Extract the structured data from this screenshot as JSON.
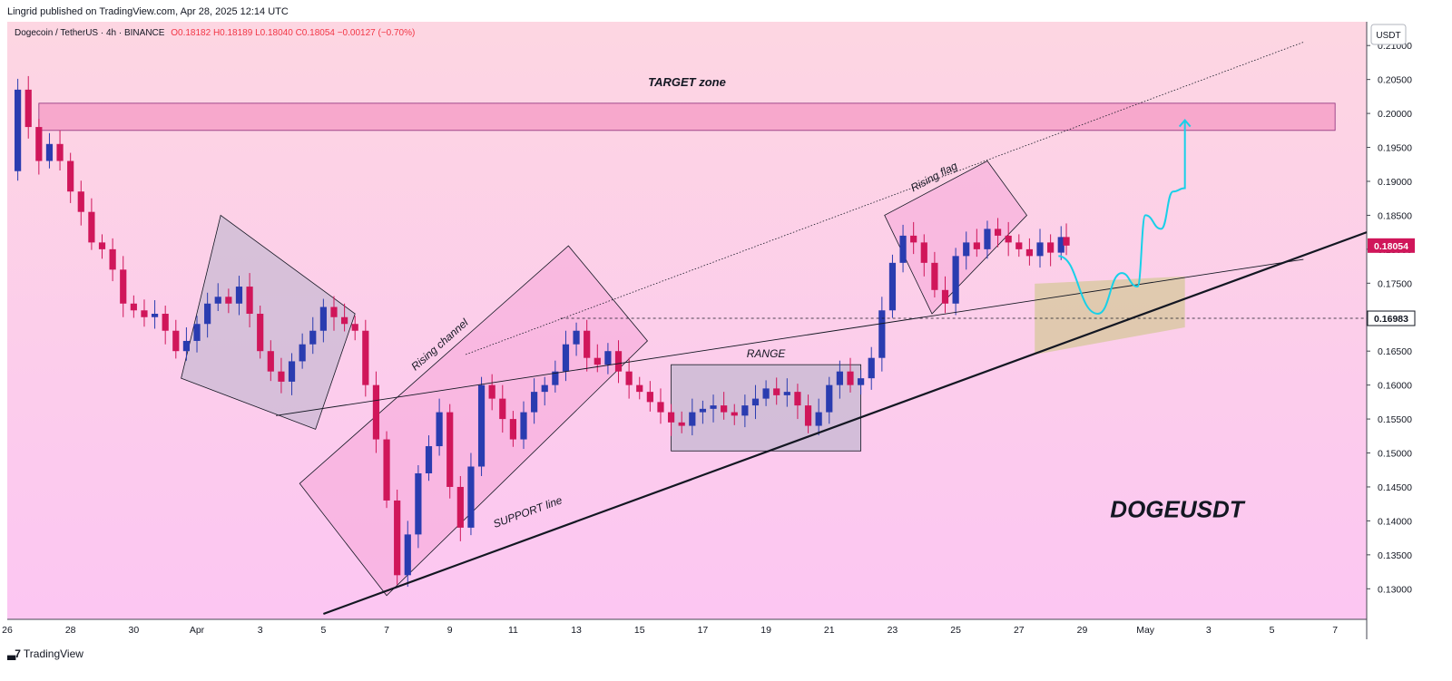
{
  "header": {
    "published": "Lingrid published on TradingView.com, Apr 28, 2025 12:14 UTC"
  },
  "symbol": {
    "title": "Dogecoin / TetherUS · 4h · BINANCE",
    "ohlc": "O0.18182  H0.18189  L0.18040  C0.18054  −0.00127 (−0.70%)"
  },
  "footer": {
    "brand": "TradingView",
    "logo_icon": "tradingview-logo-icon"
  },
  "colors": {
    "bg_top": "#fdd6e2",
    "bg_bottom": "#fcc6f2",
    "bull": "#2a3cb0",
    "bear": "#d0165a",
    "target_zone": "#f6a0c8",
    "path": "#18d0e8",
    "label_bg": "#131722"
  },
  "chart_data": {
    "type": "candlestick",
    "timeframe": "4h",
    "y_axis": {
      "unit_label": "USDT",
      "ticks": [
        "0.21000",
        "0.20500",
        "0.20000",
        "0.19500",
        "0.19000",
        "0.18500",
        "0.18000",
        "0.17500",
        "0.17000",
        "0.16500",
        "0.16000",
        "0.15500",
        "0.15000",
        "0.14500",
        "0.14000",
        "0.13500",
        "0.13000"
      ],
      "range": [
        0.1255,
        0.2135
      ]
    },
    "x_axis": {
      "ticks": [
        "26",
        "28",
        "30",
        "Apr",
        "3",
        "5",
        "7",
        "9",
        "11",
        "13",
        "15",
        "17",
        "19",
        "21",
        "23",
        "25",
        "27",
        "29",
        "May",
        "3",
        "5",
        "7"
      ],
      "range": [
        "2025-03-26",
        "2025-05-08"
      ]
    },
    "price_labels": [
      {
        "value": 0.18054,
        "text": "0.18054",
        "style": "bear"
      },
      {
        "value": 0.16983,
        "text": "0.16983",
        "style": "dark"
      }
    ],
    "close_series": [
      {
        "t": "2025-03-26T00:00",
        "c": 0.1915
      },
      {
        "t": "2025-03-26T08:00",
        "c": 0.2035
      },
      {
        "t": "2025-03-26T16:00",
        "c": 0.198
      },
      {
        "t": "2025-03-27T00:00",
        "c": 0.193
      },
      {
        "t": "2025-03-27T08:00",
        "c": 0.1955
      },
      {
        "t": "2025-03-27T16:00",
        "c": 0.193
      },
      {
        "t": "2025-03-28T00:00",
        "c": 0.1885
      },
      {
        "t": "2025-03-28T08:00",
        "c": 0.1855
      },
      {
        "t": "2025-03-28T16:00",
        "c": 0.181
      },
      {
        "t": "2025-03-29T00:00",
        "c": 0.18
      },
      {
        "t": "2025-03-29T08:00",
        "c": 0.177
      },
      {
        "t": "2025-03-29T16:00",
        "c": 0.172
      },
      {
        "t": "2025-03-30T00:00",
        "c": 0.171
      },
      {
        "t": "2025-03-30T08:00",
        "c": 0.17
      },
      {
        "t": "2025-03-30T16:00",
        "c": 0.1705
      },
      {
        "t": "2025-03-31T00:00",
        "c": 0.168
      },
      {
        "t": "2025-03-31T08:00",
        "c": 0.165
      },
      {
        "t": "2025-03-31T16:00",
        "c": 0.1665
      },
      {
        "t": "2025-04-01T00:00",
        "c": 0.169
      },
      {
        "t": "2025-04-01T08:00",
        "c": 0.172
      },
      {
        "t": "2025-04-01T16:00",
        "c": 0.173
      },
      {
        "t": "2025-04-02T00:00",
        "c": 0.172
      },
      {
        "t": "2025-04-02T08:00",
        "c": 0.1745
      },
      {
        "t": "2025-04-02T16:00",
        "c": 0.1705
      },
      {
        "t": "2025-04-03T00:00",
        "c": 0.165
      },
      {
        "t": "2025-04-03T08:00",
        "c": 0.162
      },
      {
        "t": "2025-04-03T16:00",
        "c": 0.1605
      },
      {
        "t": "2025-04-04T00:00",
        "c": 0.1635
      },
      {
        "t": "2025-04-04T08:00",
        "c": 0.166
      },
      {
        "t": "2025-04-04T16:00",
        "c": 0.168
      },
      {
        "t": "2025-04-05T00:00",
        "c": 0.1715
      },
      {
        "t": "2025-04-05T08:00",
        "c": 0.17
      },
      {
        "t": "2025-04-05T16:00",
        "c": 0.169
      },
      {
        "t": "2025-04-06T00:00",
        "c": 0.168
      },
      {
        "t": "2025-04-06T08:00",
        "c": 0.16
      },
      {
        "t": "2025-04-06T16:00",
        "c": 0.152
      },
      {
        "t": "2025-04-07T00:00",
        "c": 0.143
      },
      {
        "t": "2025-04-07T08:00",
        "c": 0.132
      },
      {
        "t": "2025-04-07T16:00",
        "c": 0.138
      },
      {
        "t": "2025-04-08T00:00",
        "c": 0.147
      },
      {
        "t": "2025-04-08T08:00",
        "c": 0.151
      },
      {
        "t": "2025-04-08T16:00",
        "c": 0.156
      },
      {
        "t": "2025-04-09T00:00",
        "c": 0.145
      },
      {
        "t": "2025-04-09T08:00",
        "c": 0.139
      },
      {
        "t": "2025-04-09T16:00",
        "c": 0.148
      },
      {
        "t": "2025-04-10T00:00",
        "c": 0.16
      },
      {
        "t": "2025-04-10T08:00",
        "c": 0.158
      },
      {
        "t": "2025-04-10T16:00",
        "c": 0.155
      },
      {
        "t": "2025-04-11T00:00",
        "c": 0.152
      },
      {
        "t": "2025-04-11T08:00",
        "c": 0.156
      },
      {
        "t": "2025-04-11T16:00",
        "c": 0.159
      },
      {
        "t": "2025-04-12T00:00",
        "c": 0.16
      },
      {
        "t": "2025-04-12T08:00",
        "c": 0.162
      },
      {
        "t": "2025-04-12T16:00",
        "c": 0.166
      },
      {
        "t": "2025-04-13T00:00",
        "c": 0.168
      },
      {
        "t": "2025-04-13T08:00",
        "c": 0.164
      },
      {
        "t": "2025-04-13T16:00",
        "c": 0.163
      },
      {
        "t": "2025-04-14T00:00",
        "c": 0.165
      },
      {
        "t": "2025-04-14T08:00",
        "c": 0.162
      },
      {
        "t": "2025-04-14T16:00",
        "c": 0.16
      },
      {
        "t": "2025-04-15T00:00",
        "c": 0.159
      },
      {
        "t": "2025-04-15T08:00",
        "c": 0.1575
      },
      {
        "t": "2025-04-15T16:00",
        "c": 0.156
      },
      {
        "t": "2025-04-16T00:00",
        "c": 0.1545
      },
      {
        "t": "2025-04-16T08:00",
        "c": 0.154
      },
      {
        "t": "2025-04-16T16:00",
        "c": 0.156
      },
      {
        "t": "2025-04-17T00:00",
        "c": 0.1565
      },
      {
        "t": "2025-04-17T08:00",
        "c": 0.157
      },
      {
        "t": "2025-04-17T16:00",
        "c": 0.156
      },
      {
        "t": "2025-04-18T00:00",
        "c": 0.1555
      },
      {
        "t": "2025-04-18T08:00",
        "c": 0.157
      },
      {
        "t": "2025-04-18T16:00",
        "c": 0.158
      },
      {
        "t": "2025-04-19T00:00",
        "c": 0.1595
      },
      {
        "t": "2025-04-19T08:00",
        "c": 0.1585
      },
      {
        "t": "2025-04-19T16:00",
        "c": 0.159
      },
      {
        "t": "2025-04-20T00:00",
        "c": 0.157
      },
      {
        "t": "2025-04-20T08:00",
        "c": 0.154
      },
      {
        "t": "2025-04-20T16:00",
        "c": 0.156
      },
      {
        "t": "2025-04-21T00:00",
        "c": 0.16
      },
      {
        "t": "2025-04-21T08:00",
        "c": 0.162
      },
      {
        "t": "2025-04-21T16:00",
        "c": 0.16
      },
      {
        "t": "2025-04-22T00:00",
        "c": 0.161
      },
      {
        "t": "2025-04-22T08:00",
        "c": 0.164
      },
      {
        "t": "2025-04-22T16:00",
        "c": 0.171
      },
      {
        "t": "2025-04-23T00:00",
        "c": 0.178
      },
      {
        "t": "2025-04-23T08:00",
        "c": 0.182
      },
      {
        "t": "2025-04-23T16:00",
        "c": 0.181
      },
      {
        "t": "2025-04-24T00:00",
        "c": 0.178
      },
      {
        "t": "2025-04-24T08:00",
        "c": 0.174
      },
      {
        "t": "2025-04-24T16:00",
        "c": 0.172
      },
      {
        "t": "2025-04-25T00:00",
        "c": 0.179
      },
      {
        "t": "2025-04-25T08:00",
        "c": 0.181
      },
      {
        "t": "2025-04-25T16:00",
        "c": 0.18
      },
      {
        "t": "2025-04-26T00:00",
        "c": 0.183
      },
      {
        "t": "2025-04-26T08:00",
        "c": 0.182
      },
      {
        "t": "2025-04-26T16:00",
        "c": 0.181
      },
      {
        "t": "2025-04-27T00:00",
        "c": 0.18
      },
      {
        "t": "2025-04-27T08:00",
        "c": 0.179
      },
      {
        "t": "2025-04-27T16:00",
        "c": 0.181
      },
      {
        "t": "2025-04-28T00:00",
        "c": 0.1795
      },
      {
        "t": "2025-04-28T08:00",
        "c": 0.1818
      },
      {
        "t": "2025-04-28T12:00",
        "c": 0.18054
      }
    ],
    "annotations": [
      {
        "type": "zone",
        "label": "TARGET zone",
        "from": "2025-03-27",
        "to": "2025-05-07",
        "low": 0.1975,
        "high": 0.2015
      },
      {
        "type": "rotated_box",
        "label": "",
        "corners": [
          [
            "2025-03-31T12:00",
            0.161
          ],
          [
            "2025-04-01T18:00",
            0.185
          ],
          [
            "2025-04-06T00:00",
            0.1705
          ],
          [
            "2025-04-04T18:00",
            0.1535
          ]
        ]
      },
      {
        "type": "rotated_box",
        "label": "Rising channel",
        "corners": [
          [
            "2025-04-04T06:00",
            0.1455
          ],
          [
            "2025-04-07T00:00",
            0.129
          ],
          [
            "2025-04-15T06:00",
            0.1665
          ],
          [
            "2025-04-12T18:00",
            0.1805
          ]
        ]
      },
      {
        "type": "rect",
        "label": "RANGE",
        "from": "2025-04-16T00:00",
        "to": "2025-04-22T00:00",
        "low": 0.1503,
        "high": 0.163
      },
      {
        "type": "rotated_box",
        "label": "Rising flag",
        "corners": [
          [
            "2025-04-22T18:00",
            0.185
          ],
          [
            "2025-04-24T06:00",
            0.1705
          ],
          [
            "2025-04-27T06:00",
            0.185
          ],
          [
            "2025-04-26T00:00",
            0.193
          ]
        ]
      },
      {
        "type": "trendline",
        "label": "SUPPORT line",
        "from": [
          "2025-04-05T00:00",
          0.1263
        ],
        "to": [
          "2025-05-08T00:00",
          0.1825
        ],
        "style": "bold"
      },
      {
        "type": "trendline",
        "label": "",
        "from": [
          "2025-04-03T12:00",
          0.1555
        ],
        "to": [
          "2025-05-06T00:00",
          0.1785
        ],
        "style": "thin"
      },
      {
        "type": "trendline",
        "label": "",
        "from": [
          "2025-04-09T12:00",
          0.1645
        ],
        "to": [
          "2025-05-06T00:00",
          0.2105
        ],
        "style": "dotted"
      },
      {
        "type": "hline",
        "label": "",
        "value": 0.16983,
        "from": "2025-04-12T12:00",
        "to": "2025-05-08T00:00",
        "style": "dashed"
      },
      {
        "type": "zone",
        "label": "",
        "from": "2025-04-27T12:00",
        "to": "2025-05-02T06:00",
        "low": 0.1645,
        "high": 0.176,
        "style": "triangle"
      },
      {
        "type": "projection",
        "label": "",
        "points": [
          [
            "2025-04-28T06:00",
            0.179
          ],
          [
            "2025-04-29T12:00",
            0.1705
          ],
          [
            "2025-04-30T06:00",
            0.1765
          ],
          [
            "2025-04-30T18:00",
            0.1745
          ],
          [
            "2025-05-01T00:00",
            0.185
          ],
          [
            "2025-05-01T12:00",
            0.183
          ],
          [
            "2025-05-01T21:00",
            0.1885
          ],
          [
            "2025-05-02T06:00",
            0.189
          ],
          [
            "2025-05-02T06:00",
            0.199
          ]
        ]
      },
      {
        "type": "label",
        "label": "DOGEUSDT",
        "at": [
          "2025-05-02T00:00",
          0.1405
        ]
      }
    ]
  }
}
